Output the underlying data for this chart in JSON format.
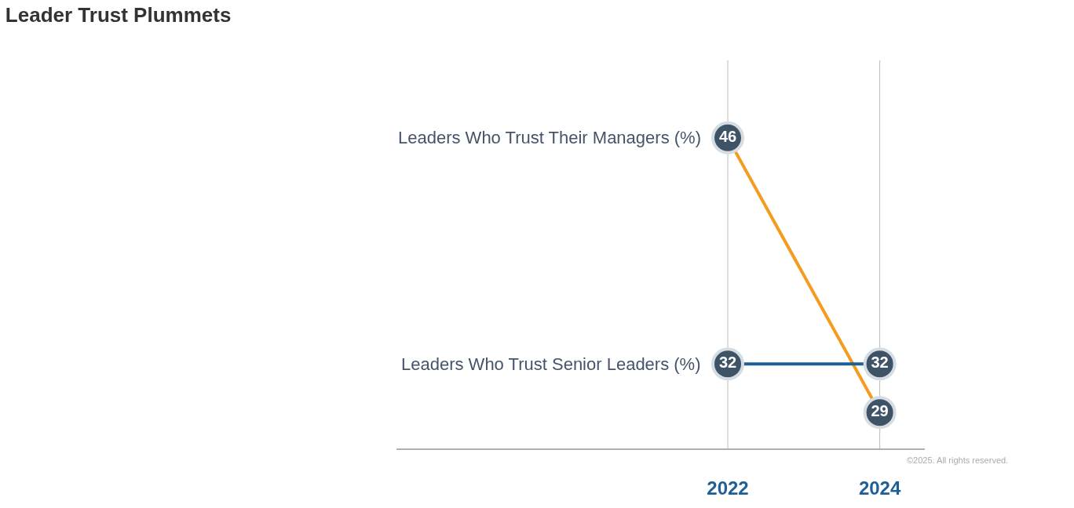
{
  "chart_data": {
    "type": "line",
    "title": "Leader Trust Plummets",
    "categories": [
      "2022",
      "2024"
    ],
    "series": [
      {
        "name": "Leaders Who Trust Their Managers (%)",
        "color": "#f39c1f",
        "values": [
          46,
          29
        ]
      },
      {
        "name": "Leaders Who Trust Senior Leaders (%)",
        "color": "#1f5f96",
        "values": [
          32,
          32
        ]
      }
    ],
    "ref_lines": [
      {
        "axis": "x",
        "value": "2022",
        "color": "#bbbbbb"
      },
      {
        "axis": "x",
        "value": "2024",
        "color": "#bbbbbb"
      }
    ],
    "data_labels": true,
    "tick_labels": "x",
    "legend": false,
    "marker": "circle",
    "line_style": "solid",
    "annotations": [
      "©2025. All rights reserved."
    ]
  }
}
